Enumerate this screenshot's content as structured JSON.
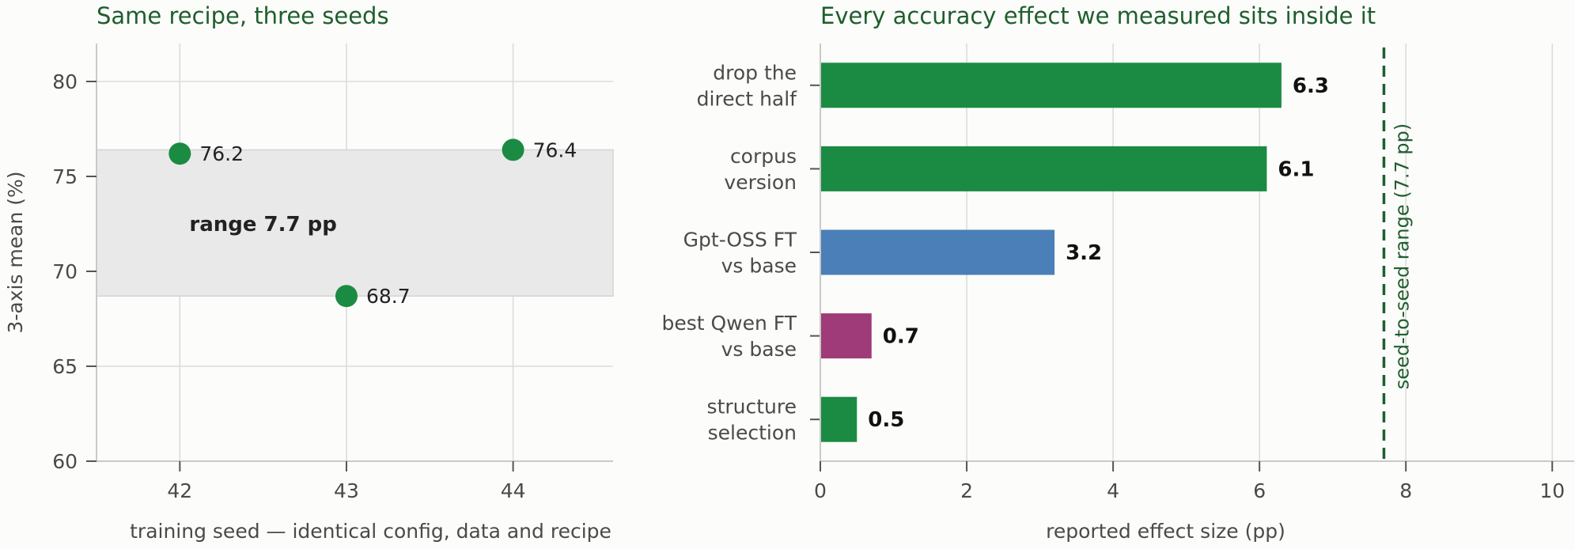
{
  "chart_data": [
    {
      "type": "scatter",
      "title": "Same recipe, three seeds",
      "xlabel": "training seed — identical config, data and recipe",
      "ylabel": "3-axis mean (%)",
      "xlim": [
        41.5,
        44.6
      ],
      "ylim": [
        60,
        82
      ],
      "xticks": [
        42,
        43,
        44
      ],
      "yticks": [
        60,
        65,
        70,
        75,
        80
      ],
      "grid": true,
      "points": [
        {
          "x": 42,
          "y": 76.2,
          "label": "76.2"
        },
        {
          "x": 43,
          "y": 68.7,
          "label": "68.7"
        },
        {
          "x": 44,
          "y": 76.4,
          "label": "76.4"
        }
      ],
      "band": {
        "ymin": 68.7,
        "ymax": 76.4,
        "label": "range 7.7 pp"
      },
      "point_color": "#1b8a43",
      "band_color": "#e9e9e9"
    },
    {
      "type": "bar",
      "orientation": "horizontal",
      "title": "Every accuracy effect we measured sits inside it",
      "xlabel": "reported effect size (pp)",
      "ylabel": "",
      "xlim": [
        0,
        10.3
      ],
      "xticks": [
        0,
        2,
        4,
        6,
        8,
        10
      ],
      "grid": true,
      "categories": [
        [
          "drop the",
          "direct half"
        ],
        [
          "corpus",
          "version"
        ],
        [
          "Gpt-OSS FT",
          "vs base"
        ],
        [
          "best Qwen FT",
          "vs base"
        ],
        [
          "structure",
          "selection"
        ]
      ],
      "values": [
        6.3,
        6.1,
        3.2,
        0.7,
        0.5
      ],
      "value_labels": [
        "6.3",
        "6.1",
        "3.2",
        "0.7",
        "0.5"
      ],
      "colors": [
        "#1b8a43",
        "#1b8a43",
        "#4a7fb8",
        "#9e3b78",
        "#1b8a43"
      ],
      "reference_line": {
        "x": 7.7,
        "label": "seed-to-seed range (7.7 pp)",
        "color": "#1e5e2e"
      }
    }
  ]
}
